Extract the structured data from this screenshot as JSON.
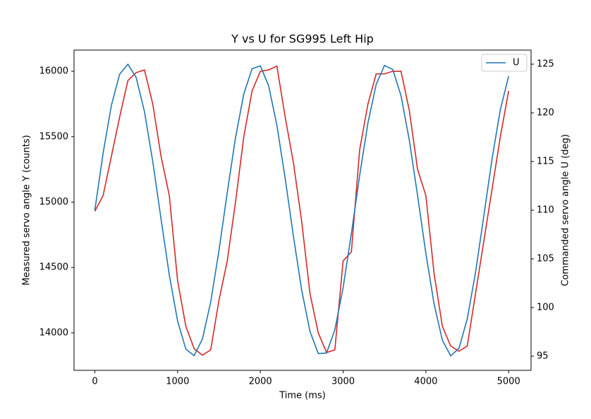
{
  "chart_data": {
    "type": "line",
    "title": "Y vs U for SG995 Left Hip",
    "x_label": "Time (ms)",
    "y_label": "Measured servo angle Y (counts)",
    "y2_label": "Commanded servo angle U (deg)",
    "x": [
      0,
      100,
      200,
      300,
      400,
      500,
      600,
      700,
      800,
      900,
      1000,
      1100,
      1200,
      1300,
      1400,
      1500,
      1600,
      1700,
      1800,
      1900,
      2000,
      2100,
      2200,
      2300,
      2400,
      2500,
      2600,
      2700,
      2800,
      2900,
      3000,
      3100,
      3200,
      3300,
      3400,
      3500,
      3600,
      3700,
      3800,
      3900,
      4000,
      4100,
      4200,
      4300,
      4400,
      4500,
      4600,
      4700,
      4800,
      4900,
      5000
    ],
    "series": [
      {
        "color": "#d62728",
        "values": [
          14930,
          15050,
          15350,
          15650,
          15930,
          15990,
          16010,
          15750,
          15350,
          15050,
          14400,
          14050,
          13880,
          13830,
          13870,
          14250,
          14550,
          15000,
          15500,
          15850,
          16000,
          16010,
          16040,
          15650,
          15300,
          14850,
          14300,
          14000,
          13850,
          13870,
          14550,
          14620,
          15400,
          15750,
          15980,
          15980,
          16000,
          16000,
          15700,
          15250,
          15050,
          14450,
          14050,
          13900,
          13860,
          13900,
          14300,
          14700,
          15100,
          15500,
          15850
        ]
      },
      {
        "name": "U",
        "color": "#1f77b4",
        "axis": "y2",
        "values": [
          110,
          115.85,
          120.77,
          123.98,
          124.99,
          123.63,
          120.12,
          115,
          109.1,
          103.34,
          98.63,
          95.72,
          95.06,
          96.77,
          100.57,
          105.85,
          111.8,
          117.46,
          121.94,
          124.53,
          124.83,
          122.79,
          118.72,
          113.27,
          107.31,
          101.77,
          97.54,
          95.27,
          95.33,
          97.71,
          102.03,
          107.61,
          113.57,
          118.96,
          122.94,
          124.87,
          124.46,
          121.75,
          117.19,
          111.5,
          105.56,
          100.33,
          96.63,
          95.04,
          95.81,
          98.83,
          103.61,
          109.4,
          115.29,
          120.34,
          123.76
        ]
      }
    ],
    "xlim": [
      -251,
      5271
    ],
    "xticks": [
      0,
      1000,
      2000,
      3000,
      4000,
      5000
    ],
    "ylim": [
      13714,
      16162
    ],
    "yticks": [
      14000,
      14500,
      15000,
      15500,
      16000
    ],
    "y2lim": [
      93.55,
      126.45
    ],
    "y2ticks": [
      95,
      100,
      105,
      110,
      115,
      120,
      125
    ],
    "legend": "upper right"
  }
}
